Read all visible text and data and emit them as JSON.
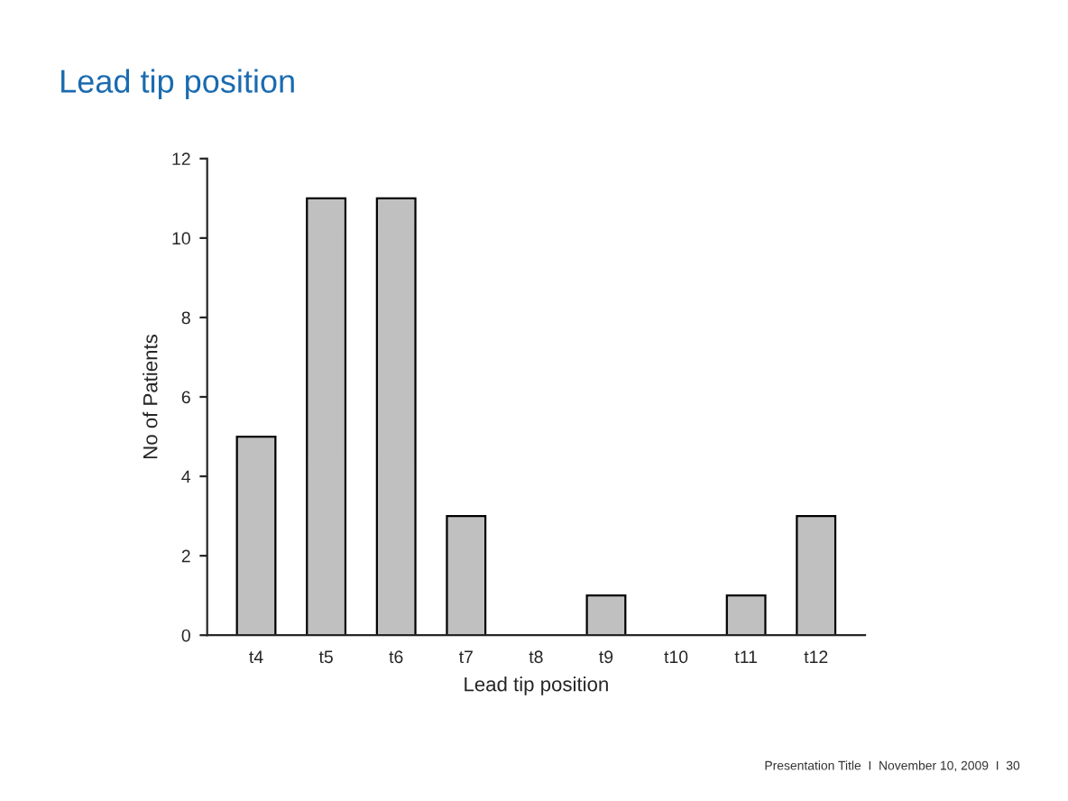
{
  "chart_data": {
    "type": "bar",
    "title": "Lead tip position",
    "categories": [
      "t4",
      "t5",
      "t6",
      "t7",
      "t8",
      "t9",
      "t10",
      "t11",
      "t12"
    ],
    "values": [
      5,
      11,
      11,
      3,
      0,
      1,
      0,
      1,
      3
    ],
    "color": "#c0c0c0",
    "xlabel": "Lead tip position",
    "ylabel": "No of Patients",
    "ylim": [
      0,
      12
    ],
    "yticks": [
      0,
      2,
      4,
      6,
      8,
      10,
      12
    ],
    "grid": false,
    "legend": false,
    "annotations": [
      "Presentation Title  I  November 10, 2009  I  30"
    ]
  }
}
